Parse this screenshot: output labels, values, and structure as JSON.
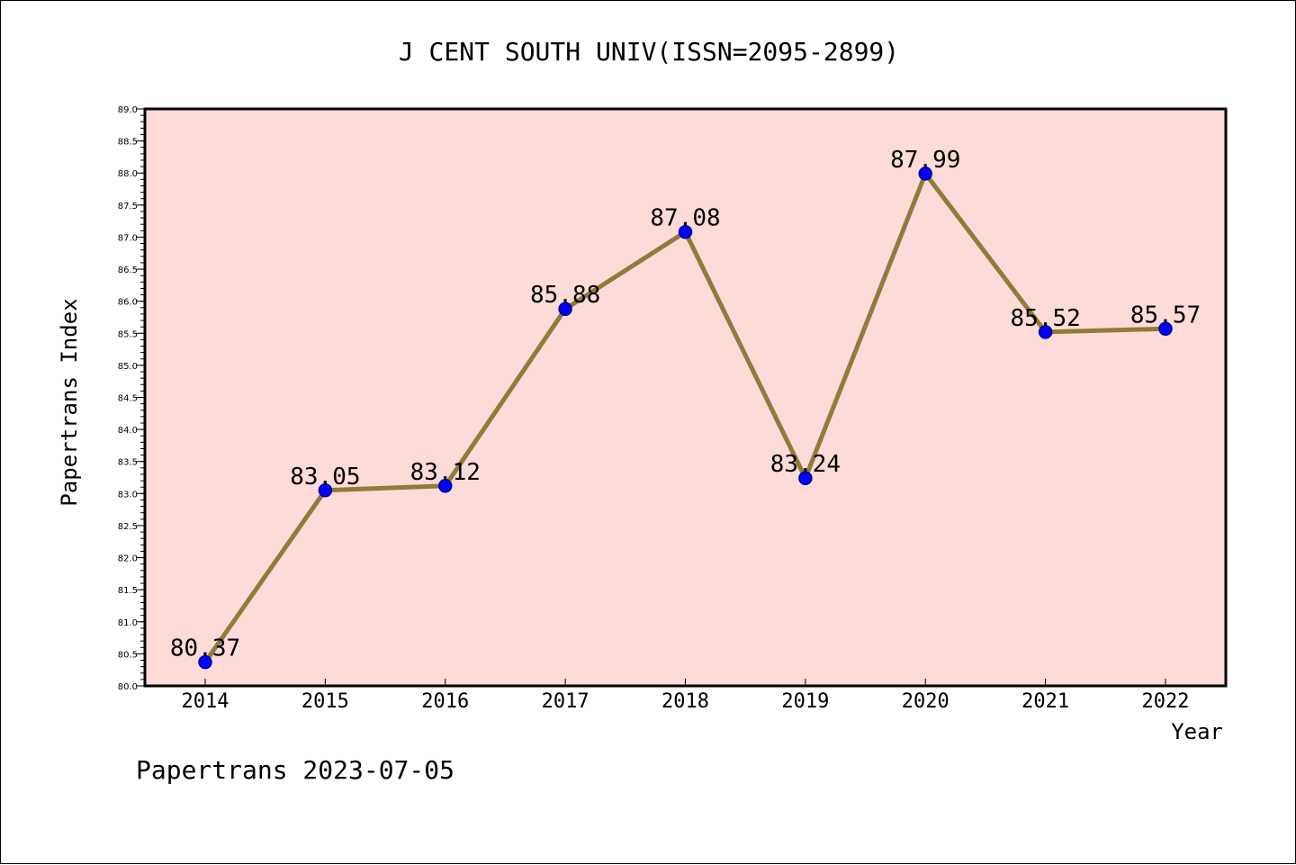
{
  "footer_text": "Papertrans 2023-07-05",
  "colors": {
    "plot_background": "#fddbd8",
    "line": "#917a3a",
    "marker_fill": "#0000ff",
    "marker_edge": "#00008b"
  },
  "chart_data": {
    "type": "line",
    "title": "J CENT SOUTH UNIV(ISSN=2095-2899)",
    "xlabel": "Year",
    "ylabel": "Papertrans Index",
    "x": [
      "2014",
      "2015",
      "2016",
      "2017",
      "2018",
      "2019",
      "2020",
      "2021",
      "2022"
    ],
    "series": [
      {
        "values": [
          80.37,
          83.05,
          83.12,
          85.88,
          87.08,
          83.24,
          87.99,
          85.52,
          85.57
        ],
        "labels": [
          "80.37",
          "83.05",
          "83.12",
          "85.88",
          "87.08",
          "83.24",
          "87.99",
          "85.52",
          "85.57"
        ]
      }
    ],
    "ylim": [
      80.0,
      89.0
    ],
    "yticks": [
      "80.0",
      "80.5",
      "81.0",
      "81.5",
      "82.0",
      "82.5",
      "83.0",
      "83.5",
      "84.0",
      "84.5",
      "85.0",
      "85.5",
      "86.0",
      "86.5",
      "87.0",
      "87.5",
      "88.0",
      "88.5",
      "89.0"
    ],
    "grid": false,
    "legend": "none",
    "markers": true
  }
}
